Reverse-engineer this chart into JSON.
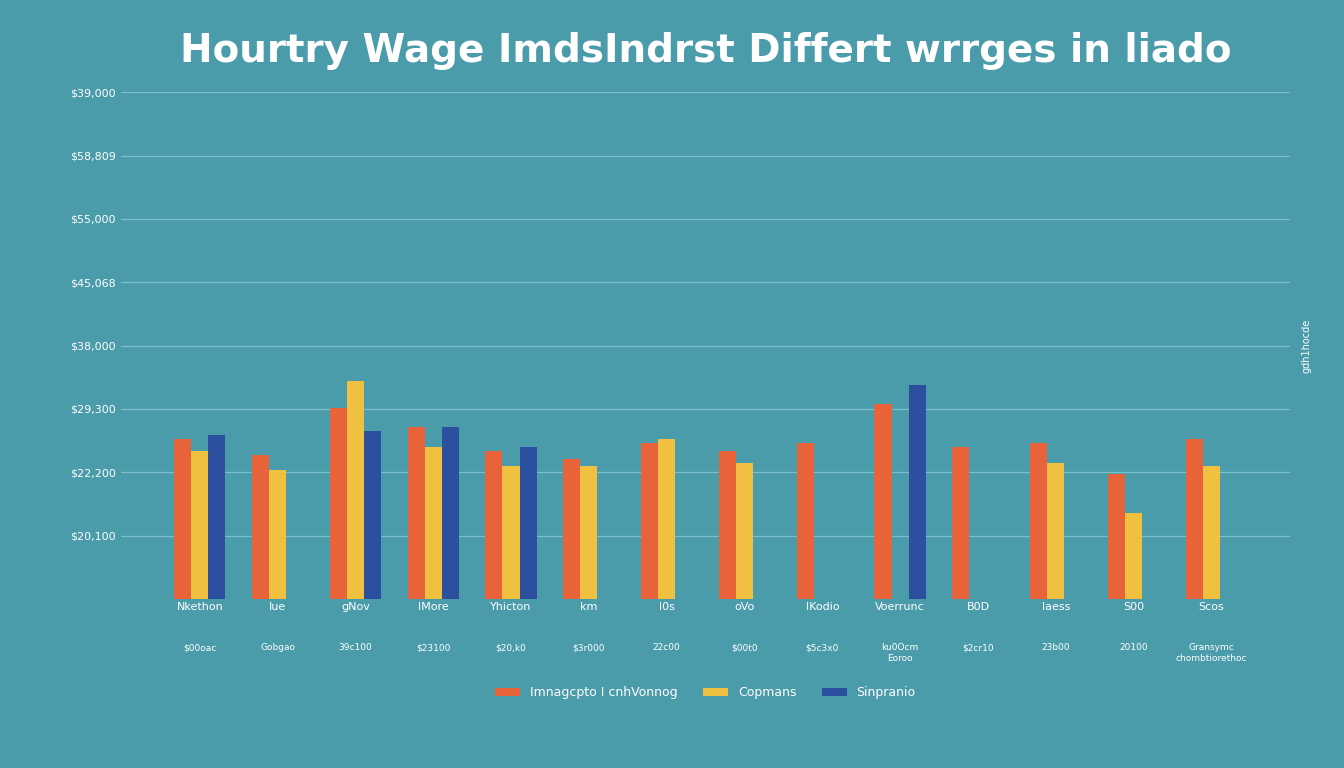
{
  "title": "Hourtry Wage ImdsIndrst Differt wrrges in liado",
  "background_color": "#4a9caa",
  "bar_colors": [
    "#e8633a",
    "#f0c040",
    "#2d4fa0"
  ],
  "legend_labels": [
    "Imnagcpto I cnhVonnog",
    "Copmans",
    "Sinpranio"
  ],
  "cat_top": [
    "Nkethon",
    "Iue",
    "gNov",
    "lMore",
    "Yhicton",
    "km",
    "l0s",
    "oVo",
    "lKodio",
    "Voerrunc",
    "B0D",
    "laess",
    "S00",
    "Scos"
  ],
  "cat_bot": [
    "$00oac",
    "Gobgao",
    "39c100",
    "$23100",
    "$20,k0",
    "$3r000",
    "22c00",
    "$00t0",
    "$5c3x0",
    "ku0Ocm\nEoroo",
    "$2cr10",
    "23b00",
    "20100",
    "Gransymc\nchombtiorethoc"
  ],
  "series1_values": [
    20500,
    18500,
    24500,
    22000,
    19000,
    18000,
    20000,
    19000,
    20000,
    25000,
    19500,
    20000,
    16000,
    20500
  ],
  "series2_values": [
    19000,
    16500,
    28000,
    19500,
    17000,
    17000,
    20500,
    17500,
    0,
    0,
    0,
    17500,
    11000,
    17000
  ],
  "series3_values": [
    21000,
    0,
    21500,
    22000,
    19500,
    0,
    0,
    0,
    0,
    27500,
    0,
    0,
    0,
    0
  ],
  "ytick_labels": [
    "$20,100",
    "$22,200",
    "$29,300",
    "$38,000",
    "$45,068",
    "$55,000",
    "$58,809",
    "$39,000"
  ],
  "ymax": 65000,
  "ylabel": "gdh1hocde",
  "grid_color": "#7bbfcc",
  "text_color": "#ffffff",
  "title_fontsize": 28,
  "axis_fontsize": 8,
  "tick_fontsize": 8
}
